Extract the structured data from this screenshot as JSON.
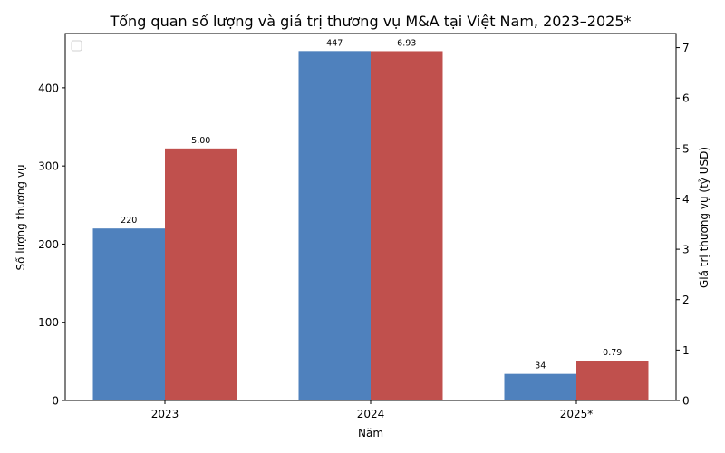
{
  "chart_data": {
    "type": "bar",
    "title": "Tổng quan số lượng và giá trị thương vụ M&A tại Việt Nam, 2023–2025*",
    "xlabel": "Năm",
    "ylabel": "Số lượng thương vụ",
    "ylabel_right": "Giá trị thương vụ (tỷ USD)",
    "categories": [
      "2023",
      "2024",
      "2025*"
    ],
    "series": [
      {
        "name": "Số lượng thương vụ",
        "axis": "left",
        "color": "#4f81bd",
        "values": [
          220,
          447,
          34
        ],
        "labels": [
          "220",
          "447",
          "34"
        ]
      },
      {
        "name": "Giá trị thương vụ (tỷ USD)",
        "axis": "right",
        "color": "#c0504d",
        "values": [
          5.0,
          6.93,
          0.79
        ],
        "labels": [
          "5.00",
          "6.93",
          "0.79"
        ]
      }
    ],
    "ylim": [
      0,
      469.4
    ],
    "ylim_right": [
      0,
      7.28
    ],
    "yticks": [
      0,
      100,
      200,
      300,
      400
    ],
    "yticks_right": [
      0,
      1,
      2,
      3,
      4,
      5,
      6,
      7
    ],
    "grid": false,
    "legend": {
      "position": "upper left",
      "entries": []
    }
  }
}
